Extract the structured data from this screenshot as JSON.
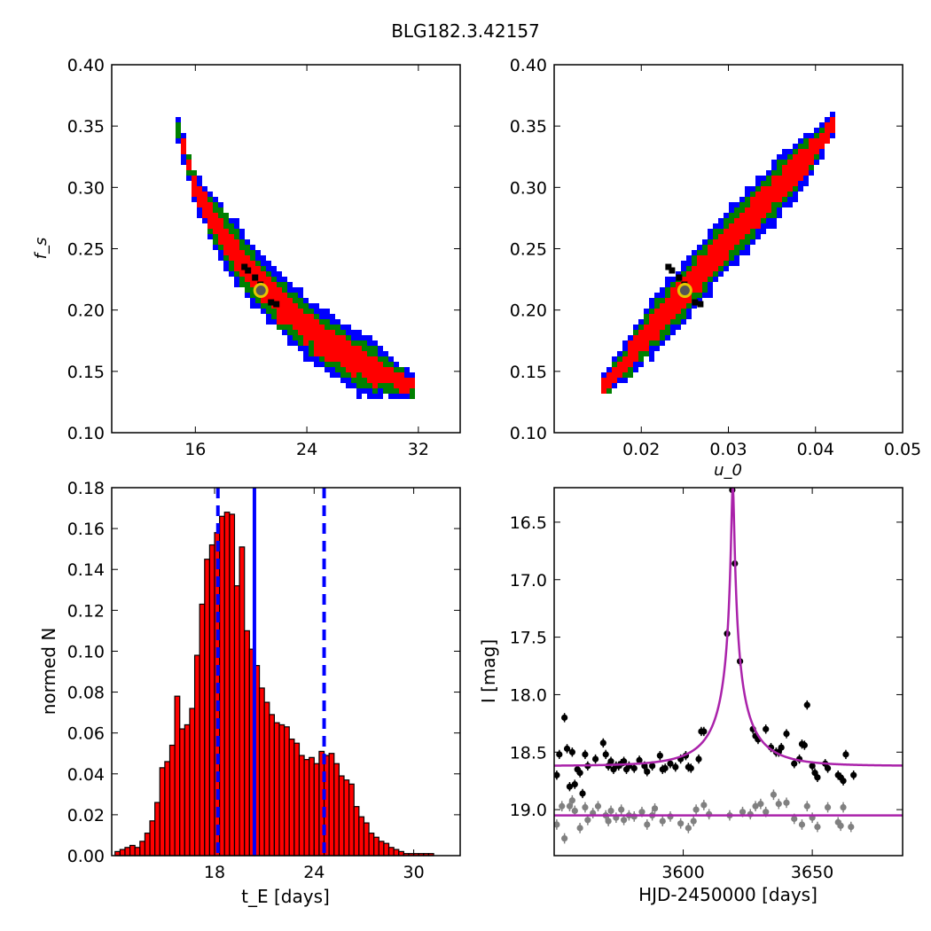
{
  "figure_title": "BLG182.3.42157",
  "colors": {
    "outer": "#0000ff",
    "middle": "#008000",
    "inner": "#ff0000",
    "best": "#000000",
    "marker_face": "#555555",
    "marker_edge": "#e6c700",
    "hist_bar": "#ff0000",
    "vline": "#0000ff",
    "model": "#aa22aa",
    "data_dark": "#000000",
    "data_light": "#808080"
  },
  "chart_data": [
    {
      "id": "tE-fs",
      "type": "heatmap",
      "xlabel": "",
      "ylabel": "f_s",
      "xlim": [
        10,
        35
      ],
      "ylim": [
        0.1,
        0.4
      ],
      "xticks": [
        16,
        24,
        32
      ],
      "yticks": [
        "0.10",
        "0.15",
        "0.20",
        "0.25",
        "0.30",
        "0.35",
        "0.40"
      ],
      "band": {
        "x": [
          14.8,
          16.0,
          18.0,
          20.0,
          22.0,
          24.0,
          26.0,
          28.0,
          30.0,
          31.5
        ],
        "y": [
          0.35,
          0.3,
          0.262,
          0.232,
          0.207,
          0.187,
          0.17,
          0.157,
          0.146,
          0.139
        ]
      },
      "best_fit": {
        "x": 20.7,
        "y": 0.216
      }
    },
    {
      "id": "u0-fs",
      "type": "heatmap",
      "xlabel": "u_0",
      "ylabel": "",
      "xlim": [
        0.01,
        0.05
      ],
      "ylim": [
        0.1,
        0.4
      ],
      "xticks": [
        "0.02",
        "0.03",
        "0.04",
        "0.05"
      ],
      "yticks": [
        "0.10",
        "0.15",
        "0.20",
        "0.25",
        "0.30",
        "0.35",
        "0.40"
      ],
      "band": {
        "x": [
          0.016,
          0.02,
          0.025,
          0.03,
          0.035,
          0.04,
          0.042
        ],
        "y": [
          0.14,
          0.175,
          0.216,
          0.258,
          0.295,
          0.333,
          0.352
        ]
      },
      "best_fit": {
        "x": 0.025,
        "y": 0.216
      }
    },
    {
      "id": "tE-hist",
      "type": "bar",
      "xlabel": "t_E [days]",
      "ylabel": "normed N",
      "xlim": [
        11.8,
        32.8
      ],
      "ylim": [
        0,
        0.18
      ],
      "xticks": [
        18,
        24,
        30
      ],
      "yticks": [
        "0.00",
        "0.02",
        "0.04",
        "0.06",
        "0.08",
        "0.10",
        "0.12",
        "0.14",
        "0.16",
        "0.18"
      ],
      "bin_start": 12.0,
      "bin_width": 0.3,
      "values": [
        0.002,
        0.003,
        0.004,
        0.005,
        0.004,
        0.007,
        0.011,
        0.017,
        0.026,
        0.043,
        0.046,
        0.054,
        0.078,
        0.062,
        0.064,
        0.072,
        0.098,
        0.123,
        0.145,
        0.152,
        0.158,
        0.166,
        0.168,
        0.167,
        0.132,
        0.151,
        0.11,
        0.101,
        0.093,
        0.082,
        0.075,
        0.069,
        0.065,
        0.064,
        0.063,
        0.057,
        0.055,
        0.049,
        0.047,
        0.048,
        0.045,
        0.051,
        0.049,
        0.05,
        0.045,
        0.039,
        0.037,
        0.035,
        0.024,
        0.019,
        0.016,
        0.011,
        0.009,
        0.007,
        0.006,
        0.004,
        0.003,
        0.002,
        0.001,
        0.001,
        0.001,
        0.001,
        0.001,
        0.001
      ],
      "median_line": 20.4,
      "bounds": [
        18.2,
        24.6
      ]
    },
    {
      "id": "lightcurve",
      "type": "scatter",
      "xlabel": "HJD-2450000 [days]",
      "ylabel": "I [mag]",
      "xlim": [
        3550,
        3685
      ],
      "ylim": [
        19.4,
        16.2
      ],
      "xticks": [
        3600,
        3650
      ],
      "yticks": [
        "16.5",
        "17.0",
        "17.5",
        "18.0",
        "18.5",
        "19.0"
      ],
      "model_dark": {
        "t0": 3619.2,
        "u0": 0.025,
        "tE": 20.7,
        "fs": 0.216,
        "base": 18.62
      },
      "model_light": {
        "base": 19.05
      },
      "series": [
        {
          "name": "",
          "color": "data_dark",
          "x": [
            3551,
            3552,
            3554,
            3555,
            3556,
            3557,
            3558,
            3559,
            3560,
            3561,
            3562,
            3563,
            3566,
            3569,
            3570,
            3571,
            3572,
            3573,
            3574,
            3575,
            3576,
            3577,
            3578,
            3579,
            3581,
            3583,
            3585,
            3586,
            3588,
            3591,
            3592,
            3593,
            3595,
            3597,
            3599,
            3601,
            3602,
            3603,
            3606,
            3607,
            3608,
            3617,
            3619,
            3620,
            3622,
            3627,
            3628,
            3629,
            3632,
            3634,
            3636,
            3637,
            3638,
            3640,
            3643,
            3645,
            3646,
            3647,
            3648,
            3650,
            3651,
            3652,
            3655,
            3656,
            3660,
            3661,
            3662,
            3663,
            3666
          ],
          "y": [
            18.7,
            18.52,
            18.2,
            18.47,
            18.8,
            18.5,
            18.78,
            18.65,
            18.68,
            18.86,
            18.52,
            18.62,
            18.56,
            18.42,
            18.52,
            18.62,
            18.58,
            18.65,
            18.62,
            18.62,
            18.6,
            18.58,
            18.65,
            18.62,
            18.64,
            18.57,
            18.62,
            18.67,
            18.62,
            18.53,
            18.65,
            18.64,
            18.6,
            18.63,
            18.56,
            18.53,
            18.63,
            18.64,
            18.56,
            18.32,
            18.32,
            17.47,
            16.22,
            16.86,
            17.71,
            18.3,
            18.36,
            18.39,
            18.3,
            18.46,
            18.5,
            18.5,
            18.46,
            18.34,
            18.6,
            18.56,
            18.43,
            18.44,
            18.09,
            18.62,
            18.68,
            18.72,
            18.6,
            18.64,
            18.7,
            18.72,
            18.75,
            18.52,
            18.7
          ],
          "err": 0.04
        },
        {
          "name": "",
          "color": "data_light",
          "x": [
            3551,
            3553,
            3554,
            3556,
            3557,
            3558,
            3560,
            3562,
            3563,
            3565,
            3567,
            3570,
            3571,
            3572,
            3574,
            3576,
            3577,
            3579,
            3581,
            3584,
            3586,
            3588,
            3589,
            3592,
            3595,
            3599,
            3602,
            3604,
            3605,
            3608,
            3610,
            3618,
            3623,
            3626,
            3628,
            3630,
            3632,
            3635,
            3637,
            3640,
            3643,
            3646,
            3648,
            3650,
            3652,
            3656,
            3660,
            3661,
            3662,
            3665
          ],
          "y": [
            19.13,
            18.97,
            19.25,
            18.97,
            18.92,
            19.01,
            19.16,
            18.98,
            19.09,
            19.03,
            18.97,
            19.05,
            19.1,
            19.01,
            19.07,
            19.0,
            19.09,
            19.05,
            19.06,
            19.02,
            19.13,
            19.05,
            18.99,
            19.1,
            19.06,
            19.12,
            19.16,
            19.1,
            19.0,
            18.96,
            19.04,
            19.05,
            19.02,
            19.04,
            18.97,
            18.95,
            19.02,
            18.87,
            18.95,
            18.94,
            19.08,
            19.13,
            18.97,
            19.07,
            19.15,
            18.98,
            19.11,
            19.14,
            18.98,
            19.15
          ],
          "err": 0.045
        }
      ]
    }
  ]
}
